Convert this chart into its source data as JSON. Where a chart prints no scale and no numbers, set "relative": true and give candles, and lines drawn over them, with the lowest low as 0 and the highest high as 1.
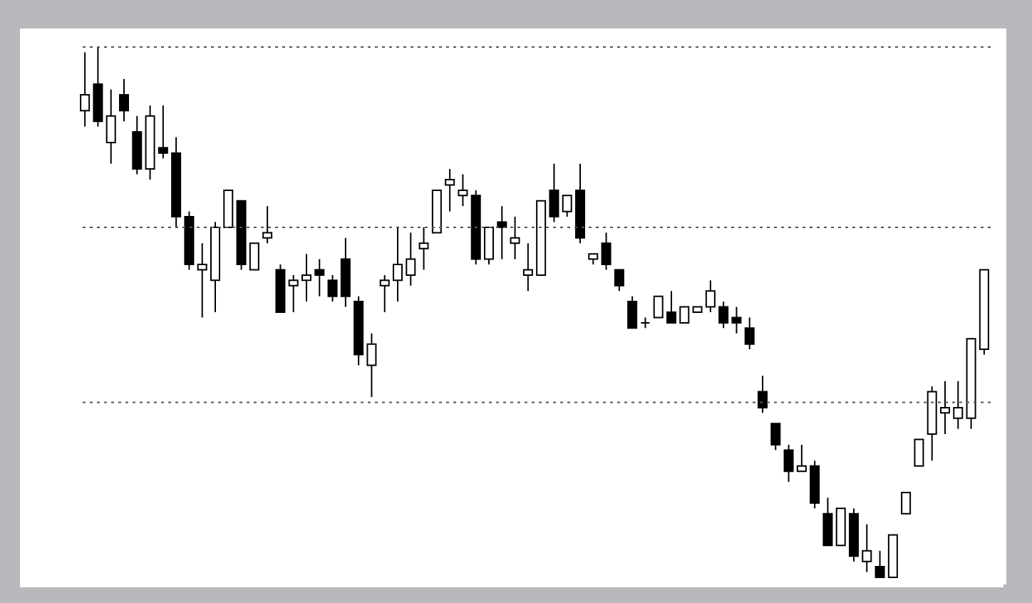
{
  "chart_data": {
    "type": "candlestick",
    "relative": true,
    "categories": [
      null,
      null,
      null,
      null,
      null,
      null,
      null,
      null,
      null,
      null,
      null,
      null,
      null,
      null,
      null,
      null,
      null,
      null,
      null,
      null,
      null,
      null,
      null,
      null,
      null,
      null,
      null,
      null,
      null,
      null,
      null,
      null,
      null,
      null,
      null,
      null,
      null,
      null,
      null,
      null,
      null,
      null,
      null,
      null,
      null,
      null,
      null,
      null,
      null,
      null,
      null,
      null,
      null,
      null,
      null,
      null,
      null,
      null,
      null,
      null,
      null,
      null,
      null,
      null,
      null,
      null,
      null,
      null,
      null,
      null
    ],
    "ohlc": [
      [
        0.88,
        0.99,
        0.85,
        0.91
      ],
      [
        0.93,
        1.0,
        0.85,
        0.86
      ],
      [
        0.82,
        0.92,
        0.78,
        0.87
      ],
      [
        0.91,
        0.94,
        0.86,
        0.88
      ],
      [
        0.84,
        0.87,
        0.76,
        0.77
      ],
      [
        0.77,
        0.89,
        0.75,
        0.87
      ],
      [
        0.81,
        0.89,
        0.79,
        0.8
      ],
      [
        0.8,
        0.83,
        0.66,
        0.68
      ],
      [
        0.68,
        0.69,
        0.58,
        0.59
      ],
      [
        0.58,
        0.63,
        0.49,
        0.59
      ],
      [
        0.56,
        0.67,
        0.5,
        0.66
      ],
      [
        0.66,
        0.73,
        0.66,
        0.73
      ],
      [
        0.71,
        0.71,
        0.58,
        0.59
      ],
      [
        0.58,
        0.63,
        0.58,
        0.63
      ],
      [
        0.64,
        0.7,
        0.63,
        0.65
      ],
      [
        0.58,
        0.59,
        0.5,
        0.5
      ],
      [
        0.55,
        0.57,
        0.5,
        0.56
      ],
      [
        0.56,
        0.61,
        0.52,
        0.57
      ],
      [
        0.58,
        0.6,
        0.53,
        0.57
      ],
      [
        0.56,
        0.57,
        0.52,
        0.53
      ],
      [
        0.6,
        0.64,
        0.51,
        0.53
      ],
      [
        0.52,
        0.53,
        0.4,
        0.42
      ],
      [
        0.4,
        0.46,
        0.34,
        0.44
      ],
      [
        0.55,
        0.57,
        0.5,
        0.56
      ],
      [
        0.56,
        0.66,
        0.52,
        0.59
      ],
      [
        0.57,
        0.65,
        0.55,
        0.6
      ],
      [
        0.62,
        0.66,
        0.58,
        0.63
      ],
      [
        0.65,
        0.73,
        0.65,
        0.73
      ],
      [
        0.74,
        0.77,
        0.69,
        0.75
      ],
      [
        0.72,
        0.76,
        0.7,
        0.73
      ],
      [
        0.72,
        0.73,
        0.59,
        0.6
      ],
      [
        0.6,
        0.66,
        0.59,
        0.66
      ],
      [
        0.67,
        0.7,
        0.6,
        0.66
      ],
      [
        0.63,
        0.68,
        0.6,
        0.64
      ],
      [
        0.57,
        0.63,
        0.54,
        0.58
      ],
      [
        0.57,
        0.71,
        0.57,
        0.71
      ],
      [
        0.73,
        0.78,
        0.67,
        0.68
      ],
      [
        0.69,
        0.72,
        0.68,
        0.72
      ],
      [
        0.73,
        0.78,
        0.63,
        0.64
      ],
      [
        0.6,
        0.61,
        0.59,
        0.61
      ],
      [
        0.63,
        0.65,
        0.58,
        0.59
      ],
      [
        0.58,
        0.58,
        0.54,
        0.55
      ],
      [
        0.52,
        0.53,
        0.47,
        0.47
      ],
      [
        0.48,
        0.49,
        0.47,
        0.48
      ],
      [
        0.49,
        0.53,
        0.49,
        0.53
      ],
      [
        0.5,
        0.54,
        0.48,
        0.48
      ],
      [
        0.48,
        0.51,
        0.48,
        0.51
      ],
      [
        0.5,
        0.51,
        0.5,
        0.51
      ],
      [
        0.51,
        0.56,
        0.5,
        0.54
      ],
      [
        0.51,
        0.52,
        0.47,
        0.48
      ],
      [
        0.49,
        0.51,
        0.46,
        0.48
      ],
      [
        0.47,
        0.49,
        0.43,
        0.44
      ],
      [
        0.35,
        0.38,
        0.31,
        0.32
      ],
      [
        0.29,
        0.29,
        0.24,
        0.25
      ],
      [
        0.24,
        0.25,
        0.18,
        0.2
      ],
      [
        0.2,
        0.25,
        0.2,
        0.21
      ],
      [
        0.21,
        0.22,
        0.13,
        0.14
      ],
      [
        0.12,
        0.15,
        0.06,
        0.06
      ],
      [
        0.06,
        0.13,
        0.06,
        0.13
      ],
      [
        0.12,
        0.13,
        0.03,
        0.04
      ],
      [
        0.03,
        0.1,
        0.01,
        0.05
      ],
      [
        0.02,
        0.05,
        0.0,
        0.0
      ],
      [
        0.0,
        0.08,
        0.0,
        0.08
      ],
      [
        0.12,
        0.16,
        0.12,
        0.16
      ],
      [
        0.21,
        0.26,
        0.21,
        0.26
      ],
      [
        0.27,
        0.36,
        0.22,
        0.35
      ],
      [
        0.31,
        0.37,
        0.27,
        0.32
      ],
      [
        0.3,
        0.37,
        0.28,
        0.32
      ],
      [
        0.3,
        0.45,
        0.28,
        0.45
      ],
      [
        0.43,
        0.58,
        0.42,
        0.58
      ]
    ],
    "ref_lines": [
      {
        "axis": "y",
        "value": 1.0,
        "color": "#555555",
        "line_style": "dotted"
      },
      {
        "axis": "y",
        "value": 0.66,
        "color": "#555555",
        "line_style": "dotted"
      },
      {
        "axis": "y",
        "value": 0.33,
        "color": "#555555",
        "line_style": "dotted"
      }
    ]
  }
}
